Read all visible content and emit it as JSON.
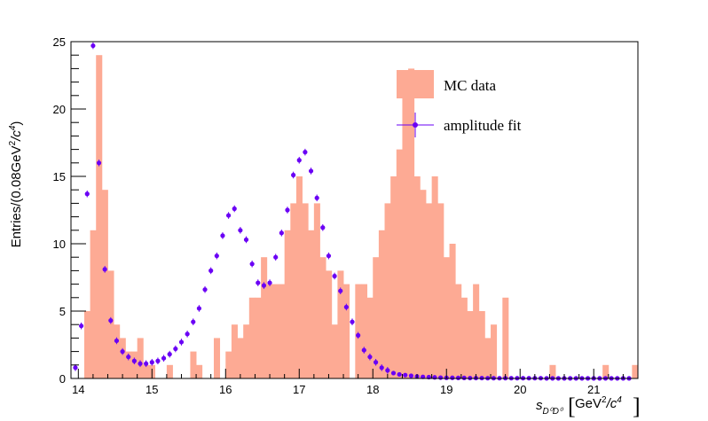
{
  "chart_data": {
    "type": "bar",
    "xlabel_main": "s",
    "xlabel_sub": "D⁰D⁰",
    "xlabel_unit_open": "[",
    "xlabel_unit": "GeV",
    "xlabel_unit_exp1": "2",
    "xlabel_unit_slash": "/c",
    "xlabel_unit_exp2": "4",
    "xlabel_unit_close": "]",
    "ylabel_a": "Entries/(0.08GeV",
    "ylabel_exp1": "2",
    "ylabel_b": "/c",
    "ylabel_exp2": "4",
    "ylabel_c": ")",
    "xlim": [
      13.9,
      21.6
    ],
    "ylim": [
      0,
      25
    ],
    "xticks": [
      "14",
      "15",
      "16",
      "17",
      "18",
      "19",
      "20",
      "21"
    ],
    "yticks": [
      "0",
      "5",
      "10",
      "15",
      "20",
      "25"
    ],
    "grid": false,
    "legend_position": "top-right",
    "colors": {
      "histogram": "#fdaa94",
      "fit": "#6a00f5",
      "axis": "#000000"
    },
    "histogram": {
      "name": "MC data",
      "bin_width": 0.08,
      "start": 13.92,
      "values": [
        0,
        0,
        5,
        11,
        24,
        14,
        8,
        4,
        3,
        2,
        2,
        3,
        1,
        1,
        0,
        0,
        1,
        0,
        0,
        0,
        2,
        1,
        0,
        0,
        3,
        0,
        2,
        4,
        3,
        4,
        6,
        6,
        9,
        7,
        7,
        7,
        11,
        13,
        15,
        13,
        11,
        13,
        9,
        8,
        4,
        8,
        7,
        0,
        7,
        7,
        6,
        9,
        11,
        13,
        15,
        17,
        21,
        23,
        15,
        14,
        13,
        15,
        13,
        9,
        10,
        7,
        6,
        5,
        7,
        5,
        3,
        4,
        0,
        6,
        0,
        0,
        0,
        0,
        0,
        0,
        0,
        1,
        0,
        0,
        0,
        0,
        0,
        0,
        0,
        0,
        1,
        0,
        0,
        0,
        0,
        1,
        0,
        0,
        0,
        0,
        0,
        0,
        0,
        0,
        0,
        0,
        0,
        0,
        0,
        0,
        0,
        0,
        0,
        0,
        0,
        0,
        0,
        0,
        0,
        0,
        0,
        0,
        0,
        0
      ]
    },
    "fit": {
      "name": "amplitude fit",
      "x": [
        13.96,
        14.04,
        14.12,
        14.2,
        14.28,
        14.36,
        14.44,
        14.52,
        14.6,
        14.68,
        14.76,
        14.84,
        14.92,
        15.0,
        15.08,
        15.16,
        15.24,
        15.32,
        15.4,
        15.48,
        15.56,
        15.64,
        15.72,
        15.8,
        15.88,
        15.96,
        16.04,
        16.12,
        16.2,
        16.28,
        16.36,
        16.44,
        16.52,
        16.6,
        16.68,
        16.76,
        16.84,
        16.92,
        17.0,
        17.08,
        17.16,
        17.24,
        17.32,
        17.4,
        17.48,
        17.56,
        17.64,
        17.72,
        17.8,
        17.88,
        17.96,
        18.04,
        18.12,
        18.2,
        18.28,
        18.36,
        18.44,
        18.52,
        18.6,
        18.68,
        18.76,
        18.84,
        18.92,
        19.0,
        19.08,
        19.16,
        19.24,
        19.32,
        19.4,
        19.48,
        19.56,
        19.64,
        19.72,
        19.8,
        19.88,
        19.96,
        20.04,
        20.12,
        20.2,
        20.28,
        20.36,
        20.44,
        20.52,
        20.6,
        20.68,
        20.76,
        20.84,
        20.92,
        21.0,
        21.08,
        21.16,
        21.24,
        21.32,
        21.4,
        21.48
      ],
      "y": [
        0.8,
        3.9,
        13.7,
        24.7,
        16.0,
        8.1,
        4.3,
        2.8,
        2.0,
        1.6,
        1.3,
        1.1,
        1.1,
        1.2,
        1.3,
        1.5,
        1.8,
        2.2,
        2.7,
        3.3,
        4.2,
        5.2,
        6.6,
        8.0,
        9.1,
        10.6,
        12.1,
        12.6,
        11.0,
        10.3,
        8.5,
        7.1,
        6.9,
        7.1,
        9.0,
        10.8,
        12.5,
        15.1,
        16.2,
        16.8,
        15.4,
        13.4,
        11.2,
        9.1,
        7.6,
        6.5,
        5.3,
        4.2,
        3.2,
        2.1,
        1.6,
        1.2,
        0.8,
        0.6,
        0.4,
        0.3,
        0.25,
        0.2,
        0.15,
        0.12,
        0.1,
        0.08,
        0.06,
        0.05,
        0.05,
        0.04,
        0.04,
        0.03,
        0.03,
        0.03,
        0.02,
        0.02,
        0.02,
        0.02,
        0.02,
        0.02,
        0.02,
        0.02,
        0.02,
        0.02,
        0.01,
        0.01,
        0.01,
        0.01,
        0.01,
        0.01,
        0.01,
        0.01,
        0.01,
        0.01,
        0.01,
        0.01,
        0.01,
        0.01,
        0.01
      ],
      "yerr": 0.25
    }
  }
}
